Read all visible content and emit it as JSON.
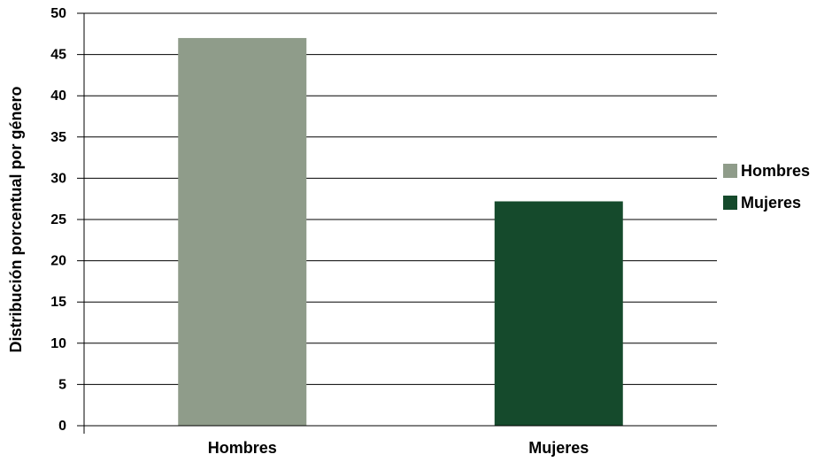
{
  "chart_data": {
    "type": "bar",
    "categories": [
      "Hombres",
      "Mujeres"
    ],
    "values": [
      47,
      27.2
    ],
    "colors": [
      "#8f9c8a",
      "#154a2c"
    ],
    "ylabel": "Distribución porcentual por género",
    "xlabel": "",
    "title": "",
    "ylim": [
      0,
      50
    ],
    "yticks": [
      0,
      5,
      10,
      15,
      20,
      25,
      30,
      35,
      40,
      45,
      50
    ],
    "grid": true,
    "legend": {
      "placement": "right",
      "entries": [
        {
          "label": "Hombres",
          "color": "#8f9c8a"
        },
        {
          "label": "Mujeres",
          "color": "#154a2c"
        }
      ]
    }
  }
}
